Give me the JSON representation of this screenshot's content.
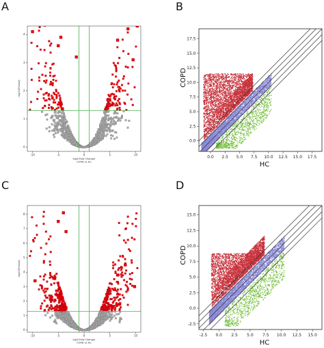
{
  "panels": [
    "A",
    "B",
    "C",
    "D"
  ],
  "colors": {
    "up_down": "#e8000a",
    "ns": "#a9a9a9",
    "threshold_line": "#4caf50",
    "scatter_red": "#c8323c",
    "scatter_green": "#7ac142",
    "scatter_purple": "#8a8ad8",
    "diag_line": "#333333"
  },
  "chart_data": [
    {
      "panel": "A",
      "type": "scatter",
      "xlabel": "log2(Fold Change)",
      "xlabel2": "COPD vs HC",
      "ylabel": "-log10(Pvalue)",
      "xlim": [
        -11,
        11
      ],
      "ylim": [
        -0.15,
        4.3
      ],
      "xticks": [
        -10,
        -5,
        0,
        5,
        10
      ],
      "yticks": [
        0,
        1,
        2,
        3,
        4
      ],
      "hline": 1.3,
      "vlines": [
        -1,
        1
      ],
      "series": [
        {
          "name": "",
          "color": "up_down",
          "marker": "square",
          "density": "many"
        },
        {
          "name": "",
          "color": "ns",
          "marker": "square",
          "density": "many"
        }
      ],
      "outliers": [
        [
          -10,
          4.1
        ],
        [
          9.5,
          3.1
        ],
        [
          10.3,
          4.3
        ],
        [
          6.5,
          3.8
        ],
        [
          8.5,
          4.2
        ],
        [
          -4.5,
          3.9
        ],
        [
          -1.5,
          3.2
        ],
        [
          -5,
          3.6
        ]
      ]
    },
    {
      "panel": "B",
      "type": "scatter",
      "xlabel": "HC",
      "ylabel": "COPD",
      "xlim": [
        -2,
        19.2
      ],
      "ylim": [
        -1.8,
        19.2
      ],
      "xticks": [
        0.0,
        2.5,
        5.0,
        7.5,
        10.0,
        12.5,
        15.0,
        17.5
      ],
      "yticks": [
        0.0,
        2.5,
        5.0,
        7.5,
        10.0,
        12.5,
        15.0,
        17.5
      ],
      "diagonals": [
        -2,
        -1,
        0,
        1,
        2
      ],
      "series": [
        {
          "name": "",
          "color": "scatter_red",
          "region": "above"
        },
        {
          "name": "",
          "color": "scatter_purple",
          "region": "diagonal"
        },
        {
          "name": "",
          "color": "scatter_green",
          "region": "below"
        }
      ]
    },
    {
      "panel": "C",
      "type": "scatter",
      "xlabel": "log2(Fold Change)",
      "xlabel2": "COPD vs HC",
      "ylabel": "-log10(Pvalue)",
      "xlim": [
        -11,
        11
      ],
      "ylim": [
        -0.15,
        8.6
      ],
      "xticks": [
        -10,
        -5,
        0,
        5,
        10
      ],
      "yticks": [
        0,
        1,
        2,
        3,
        4,
        5,
        6,
        7,
        8
      ],
      "hline": 1.3,
      "vlines": [
        -1,
        1
      ],
      "series": [
        {
          "name": "",
          "color": "up_down",
          "marker": "square",
          "density": "many"
        },
        {
          "name": "",
          "color": "ns",
          "marker": "square",
          "density": "many"
        }
      ],
      "outliers": [
        [
          -4,
          8.1
        ],
        [
          -5,
          7.5
        ],
        [
          -3.5,
          6.8
        ],
        [
          -9.5,
          3.4
        ],
        [
          8,
          4.5
        ],
        [
          6.5,
          3.8
        ],
        [
          9.8,
          3.0
        ]
      ]
    },
    {
      "panel": "D",
      "type": "scatter",
      "xlabel": "HC",
      "ylabel": "COPD",
      "xlim": [
        -3.2,
        16.5
      ],
      "ylim": [
        -3.4,
        16.5
      ],
      "xticks": [
        -2.5,
        0.0,
        2.5,
        5.0,
        7.5,
        10.0,
        12.5,
        15.0
      ],
      "yticks": [
        -2.5,
        0.0,
        2.5,
        5.0,
        7.5,
        10.0,
        12.5,
        15.0
      ],
      "diagonals": [
        -2,
        -1,
        0,
        1,
        2
      ],
      "series": [
        {
          "name": "",
          "color": "scatter_red",
          "region": "above"
        },
        {
          "name": "",
          "color": "scatter_purple",
          "region": "diagonal"
        },
        {
          "name": "",
          "color": "scatter_green",
          "region": "below"
        }
      ]
    }
  ]
}
